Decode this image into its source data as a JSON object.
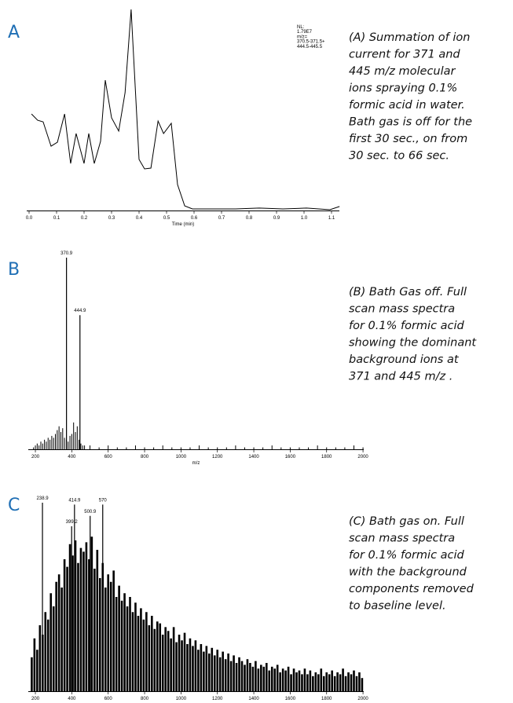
{
  "chart_data": [
    {
      "type": "line",
      "panel": "A",
      "color": "#000000",
      "caption": [
        "(A) Summation of ion",
        "current for 371 and",
        "445 m/z molecular",
        "ions spraying 0.1%",
        "formic acid in water.",
        "Bath gas is off for the",
        "first 30 sec., on from",
        "30 sec. to 66 sec."
      ],
      "annotation": [
        "NL:",
        "1.79E7",
        "m/z=",
        "370.5-371.5+",
        "444.5-445.5"
      ],
      "xlabel": "Time (min)",
      "xlim": [
        0,
        1.13
      ],
      "ylim": [
        0,
        100
      ],
      "xticks": [
        {
          "value": 0,
          "label": "0.0"
        },
        0.1,
        0.2,
        0.3,
        0.4,
        0.5,
        0.6,
        0.7,
        0.8,
        0.9,
        {
          "value": 1,
          "label": "1.0"
        },
        1.1
      ],
      "x": [
        0.009,
        0.031,
        0.051,
        0.08,
        0.103,
        0.129,
        0.151,
        0.171,
        0.2,
        0.217,
        0.237,
        0.26,
        0.277,
        0.3,
        0.326,
        0.349,
        0.371,
        0.4,
        0.42,
        0.443,
        0.469,
        0.489,
        0.517,
        0.54,
        0.566,
        0.594,
        0.666,
        0.751,
        0.837,
        0.923,
        1.009,
        1.094,
        1.129
      ],
      "values": [
        48,
        44.9,
        44.1,
        32,
        34,
        48,
        23.4,
        38.3,
        23.4,
        38.3,
        23.4,
        34.4,
        64.8,
        46.1,
        39.5,
        58.6,
        100,
        25.4,
        20.7,
        21.1,
        44.5,
        38.3,
        43.4,
        12.9,
        2.3,
        0.8,
        0.8,
        0.8,
        1.2,
        0.8,
        1.2,
        0.4,
        2
      ]
    },
    {
      "type": "spectrum",
      "panel": "B",
      "color": "#000000",
      "caption": [
        "(B) Bath Gas off. Full",
        "scan mass spectra",
        "for 0.1% formic acid",
        "showing the dominant",
        "background ions at",
        "371 and 445 m/z ."
      ],
      "xlabel": "m/z",
      "xlim": [
        161,
        2004
      ],
      "ylim": [
        0,
        100
      ],
      "xticks": [
        200,
        400,
        600,
        800,
        1000,
        1200,
        1400,
        1600,
        1800,
        2000
      ],
      "peaks": {
        "x": [
          370.9,
          444.9
        ],
        "values": [
          100,
          70
        ]
      },
      "noise": {
        "x": [
          190,
          200,
          210,
          220,
          230,
          240,
          250,
          260,
          270,
          280,
          290,
          300,
          310,
          320,
          330,
          340,
          350,
          360,
          370,
          380,
          390,
          400,
          410,
          420,
          430,
          440,
          450,
          460,
          470,
          500,
          550,
          600,
          650,
          700,
          750,
          800,
          850,
          900,
          950,
          1000,
          1050,
          1100,
          1150,
          1200,
          1250,
          1300,
          1350,
          1400,
          1450,
          1500,
          1550,
          1600,
          1650,
          1700,
          1750,
          1800,
          1850,
          1900,
          1950,
          2000
        ],
        "values": [
          1,
          2,
          3,
          2,
          4,
          3,
          5,
          4,
          6,
          5,
          7,
          6,
          8,
          10,
          12,
          9,
          11,
          6,
          5,
          4,
          7,
          8,
          14,
          9,
          12,
          5,
          3,
          2,
          2,
          2,
          1,
          2,
          1,
          1,
          2,
          1,
          1,
          2,
          1,
          1,
          1,
          2,
          1,
          1,
          1,
          2,
          1,
          1,
          1,
          2,
          1,
          1,
          1,
          1,
          2,
          1,
          1,
          1,
          2,
          1
        ]
      }
    },
    {
      "type": "spectrum",
      "panel": "C",
      "color": "#000000",
      "caption": [
        "(C) Bath gas on. Full",
        "scan mass spectra",
        "for 0.1% formic acid",
        "with the background",
        "components removed",
        "to baseline level."
      ],
      "xlim": [
        161,
        2004
      ],
      "ylim": [
        0,
        100
      ],
      "xticks": [
        200,
        400,
        600,
        800,
        1000,
        1200,
        1400,
        1600,
        1800,
        2000
      ],
      "peaks": {
        "x": [
          238.9,
          399.2,
          414.9,
          500.9,
          570.0
        ],
        "values": [
          100,
          87.5,
          99,
          93,
          99
        ]
      },
      "noise": {
        "x": [
          180,
          195,
          210,
          225,
          240,
          255,
          270,
          285,
          300,
          315,
          330,
          345,
          360,
          375,
          390,
          405,
          420,
          435,
          450,
          465,
          480,
          495,
          510,
          525,
          540,
          555,
          570,
          585,
          600,
          615,
          630,
          645,
          660,
          675,
          690,
          705,
          720,
          735,
          750,
          765,
          780,
          795,
          810,
          825,
          840,
          855,
          870,
          885,
          900,
          915,
          930,
          945,
          960,
          975,
          990,
          1005,
          1020,
          1035,
          1050,
          1065,
          1080,
          1095,
          1110,
          1125,
          1140,
          1155,
          1170,
          1185,
          1200,
          1215,
          1230,
          1245,
          1260,
          1275,
          1290,
          1305,
          1320,
          1335,
          1350,
          1365,
          1380,
          1395,
          1410,
          1425,
          1440,
          1455,
          1470,
          1485,
          1500,
          1515,
          1530,
          1545,
          1560,
          1575,
          1590,
          1605,
          1620,
          1635,
          1650,
          1665,
          1680,
          1695,
          1710,
          1725,
          1740,
          1755,
          1770,
          1785,
          1800,
          1815,
          1830,
          1845,
          1860,
          1875,
          1890,
          1905,
          1920,
          1935,
          1950,
          1965,
          1980,
          1995
        ],
        "values": [
          18,
          28,
          22,
          35,
          30,
          42,
          38,
          52,
          45,
          58,
          62,
          55,
          70,
          66,
          78,
          72,
          80,
          68,
          76,
          74,
          79,
          70,
          82,
          65,
          75,
          60,
          68,
          55,
          62,
          58,
          64,
          50,
          56,
          48,
          52,
          45,
          50,
          42,
          47,
          40,
          44,
          38,
          42,
          35,
          40,
          33,
          37,
          36,
          30,
          34,
          32,
          28,
          34,
          26,
          30,
          27,
          31,
          25,
          28,
          24,
          27,
          22,
          25,
          21,
          24,
          20,
          23,
          19,
          22,
          18,
          21,
          17,
          20,
          16,
          19,
          15,
          18,
          16,
          14,
          17,
          15,
          13,
          16,
          12,
          14,
          13,
          15,
          11,
          13,
          12,
          14,
          10,
          12,
          11,
          13,
          9,
          12,
          10,
          11,
          9,
          12,
          9,
          11,
          8,
          10,
          9,
          12,
          8,
          10,
          9,
          11,
          8,
          10,
          9,
          12,
          8,
          10,
          9,
          11,
          8,
          10,
          7
        ]
      }
    }
  ]
}
